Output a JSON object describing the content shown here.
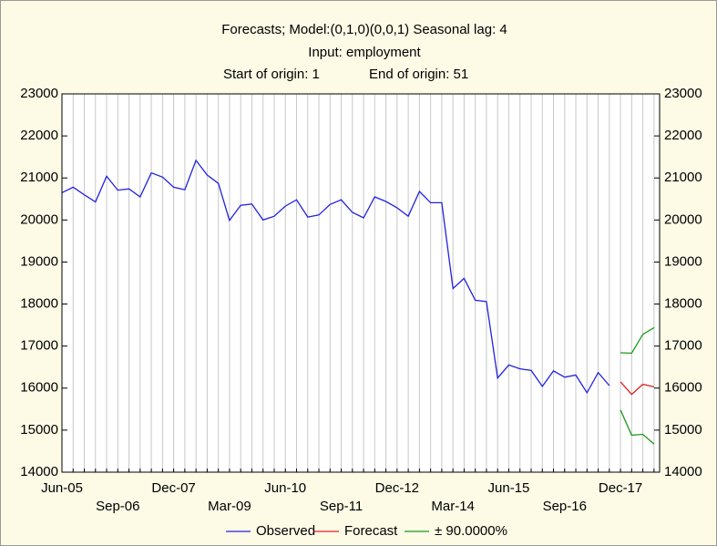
{
  "chart_data": {
    "type": "line",
    "title": "Forecasts; Model:(0,1,0)(0,0,1) Seasonal lag: 4",
    "subtitle": "Input: employment",
    "annotations": [
      "Start of origin: 1",
      "End of origin: 51"
    ],
    "categories": [
      "Jun-05",
      null,
      null,
      null,
      null,
      "Sep-06",
      null,
      null,
      null,
      null,
      "Dec-07",
      null,
      null,
      null,
      null,
      "Mar-09",
      null,
      null,
      null,
      null,
      "Jun-10",
      null,
      null,
      null,
      null,
      "Sep-11",
      null,
      null,
      null,
      null,
      "Dec-12",
      null,
      null,
      null,
      null,
      "Mar-14",
      null,
      null,
      null,
      null,
      "Jun-15",
      null,
      null,
      null,
      null,
      "Sep-16",
      null,
      null,
      null,
      null,
      "Dec-17",
      null,
      null,
      null
    ],
    "ylim": [
      14000,
      23000
    ],
    "yticks": [
      14000,
      15000,
      16000,
      17000,
      18000,
      19000,
      20000,
      21000,
      22000,
      23000
    ],
    "grid": true,
    "series": [
      {
        "name": "Observed",
        "color": "#2222dd",
        "values": [
          20650,
          20780,
          20600,
          20430,
          21040,
          20710,
          20740,
          20550,
          21120,
          21020,
          20780,
          20720,
          21420,
          21070,
          20870,
          19990,
          20350,
          20380,
          20000,
          20090,
          20330,
          20480,
          20070,
          20120,
          20370,
          20480,
          20180,
          20050,
          20550,
          20440,
          20290,
          20090,
          20680,
          20410,
          20410,
          18370,
          18610,
          18090,
          18060,
          16240,
          16550,
          16460,
          16420,
          16040,
          16410,
          16260,
          16310,
          15890,
          16370,
          16060,
          null,
          null,
          null,
          null
        ]
      },
      {
        "name": "Forecast",
        "color": "#e02020",
        "values": [
          null,
          null,
          null,
          null,
          null,
          null,
          null,
          null,
          null,
          null,
          null,
          null,
          null,
          null,
          null,
          null,
          null,
          null,
          null,
          null,
          null,
          null,
          null,
          null,
          null,
          null,
          null,
          null,
          null,
          null,
          null,
          null,
          null,
          null,
          null,
          null,
          null,
          null,
          null,
          null,
          null,
          null,
          null,
          null,
          null,
          null,
          null,
          null,
          null,
          null,
          16150,
          15850,
          16090,
          16030
        ]
      },
      {
        "name": "± 90.0000%",
        "color": "#1a9a1a",
        "values": [
          null,
          null,
          null,
          null,
          null,
          null,
          null,
          null,
          null,
          null,
          null,
          null,
          null,
          null,
          null,
          null,
          null,
          null,
          null,
          null,
          null,
          null,
          null,
          null,
          null,
          null,
          null,
          null,
          null,
          null,
          null,
          null,
          null,
          null,
          null,
          null,
          null,
          null,
          null,
          null,
          null,
          null,
          null,
          null,
          null,
          null,
          null,
          null,
          null,
          null,
          16840,
          16830,
          17280,
          17440
        ],
        "lower_values": [
          null,
          null,
          null,
          null,
          null,
          null,
          null,
          null,
          null,
          null,
          null,
          null,
          null,
          null,
          null,
          null,
          null,
          null,
          null,
          null,
          null,
          null,
          null,
          null,
          null,
          null,
          null,
          null,
          null,
          null,
          null,
          null,
          null,
          null,
          null,
          null,
          null,
          null,
          null,
          null,
          null,
          null,
          null,
          null,
          null,
          null,
          null,
          null,
          null,
          null,
          15480,
          14880,
          14900,
          14670
        ]
      }
    ]
  }
}
